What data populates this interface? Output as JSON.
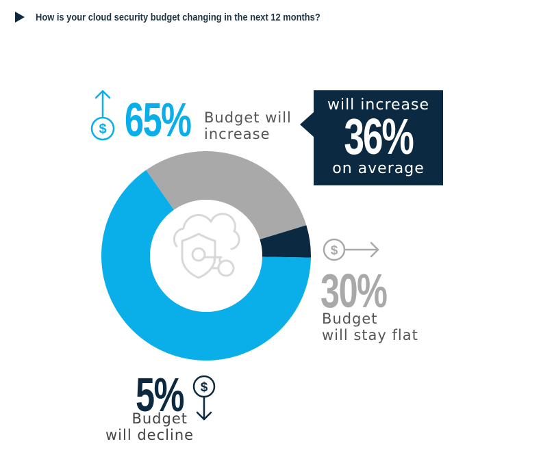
{
  "title": "How is your cloud security budget changing in the next 12 months?",
  "colors": {
    "increase": "#0aaee8",
    "flat": "#a9a9a9",
    "decline": "#0b2940",
    "header_marker": "#0f2a3d"
  },
  "chart_data": {
    "type": "pie",
    "variant": "donut",
    "title": "How is your cloud security budget changing in the next 12 months?",
    "slices": [
      {
        "key": "increase",
        "value": 65,
        "percent_label": "65%",
        "label_lines": [
          "Budget will",
          "increase"
        ],
        "color": "#0aaee8",
        "icon": "dollar-arrow-up-icon"
      },
      {
        "key": "flat",
        "value": 30,
        "percent_label": "30%",
        "label_lines": [
          "Budget",
          "will stay flat"
        ],
        "color": "#a9a9a9",
        "icon": "dollar-arrow-right-icon"
      },
      {
        "key": "decline",
        "value": 5,
        "percent_label": "5%",
        "label_lines": [
          "Budget",
          "will decline"
        ],
        "color": "#0b2940",
        "icon": "dollar-arrow-down-icon"
      }
    ],
    "center_icon": "cloud-shield-key-icon",
    "annotation": {
      "line1": "will increase",
      "value": "36%",
      "line3": "on average"
    }
  }
}
